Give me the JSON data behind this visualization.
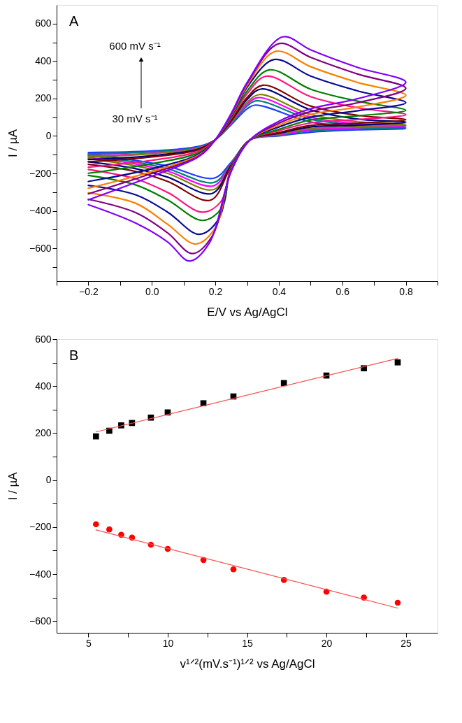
{
  "chart_data": [
    {
      "type": "line",
      "xlabel": "E/V vs Ag/AgCl",
      "ylabel": "I / µA",
      "xlim": [
        -0.3,
        0.9
      ],
      "ylim": [
        -775,
        700
      ],
      "grid": false,
      "marker": "none",
      "line_style": "solid",
      "xticks": [
        {
          "value": -0.3,
          "label": null
        },
        -0.2,
        {
          "value": -0.1,
          "label": null
        },
        {
          "value": 0,
          "label": "0.0"
        },
        {
          "value": 0.1,
          "label": null
        },
        0.2,
        {
          "value": 0.3,
          "label": null
        },
        0.4,
        {
          "value": 0.5,
          "label": null
        },
        0.6,
        {
          "value": 0.7,
          "label": null
        },
        0.8,
        {
          "value": 0.9,
          "label": null
        }
      ],
      "yticks": [
        {
          "value": -700,
          "label": null
        },
        -600,
        {
          "value": -500,
          "label": null
        },
        -400,
        {
          "value": -300,
          "label": null
        },
        -200,
        {
          "value": -100,
          "label": null
        },
        0,
        {
          "value": 100,
          "label": null
        },
        200,
        {
          "value": 300,
          "label": null
        },
        400,
        {
          "value": 500,
          "label": null
        },
        600
      ],
      "annotations": [
        "A",
        "600 mV s⁻¹",
        "30 mV s⁻¹"
      ],
      "series": [
        {
          "color": "#1e3cff",
          "x": [
            -0.2,
            0,
            0.15,
            0.2,
            0.25,
            0.3,
            0.326,
            0.5,
            0.65,
            0.8,
            0.65,
            0.5,
            0.4,
            0.31,
            0.25,
            0.196,
            0.05,
            -0.05,
            -0.2
          ],
          "values": [
            -88,
            -80,
            -55,
            -20,
            60,
            145,
            165,
            75,
            50,
            39,
            33,
            20,
            0,
            -20,
            -140,
            -225,
            -161,
            -131,
            -96
          ]
        },
        {
          "color": "#008080",
          "x": [
            -0.2,
            0,
            0.15,
            0.2,
            0.25,
            0.3,
            0.33,
            0.5,
            0.65,
            0.8,
            0.65,
            0.5,
            0.4,
            0.31,
            0.25,
            0.196,
            0.05,
            -0.05,
            -0.2
          ],
          "values": [
            -96,
            -85,
            -58,
            -20,
            65,
            160,
            188,
            90,
            58,
            47,
            38,
            28,
            3,
            -20,
            -145,
            -248,
            -175,
            -140,
            -104
          ]
        },
        {
          "color": "#ff00ff",
          "x": [
            -0.2,
            0,
            0.15,
            0.2,
            0.25,
            0.3,
            0.335,
            0.5,
            0.65,
            0.8,
            0.65,
            0.5,
            0.4,
            0.31,
            0.25,
            0.195,
            0.05,
            -0.05,
            -0.2
          ],
          "values": [
            -106,
            -92,
            -62,
            -20,
            70,
            170,
            205,
            100,
            65,
            55,
            44,
            34,
            6,
            -20,
            -148,
            -266,
            -188,
            -150,
            -114
          ]
        },
        {
          "color": "#808000",
          "x": [
            -0.2,
            0,
            0.15,
            0.2,
            0.25,
            0.3,
            0.34,
            0.5,
            0.65,
            0.8,
            0.65,
            0.5,
            0.4,
            0.31,
            0.25,
            0.195,
            0.05,
            -0.05,
            -0.2
          ],
          "values": [
            -112,
            -95,
            -64,
            -20,
            75,
            180,
            221,
            115,
            75,
            63,
            50,
            40,
            10,
            -20,
            -152,
            -286,
            -200,
            -160,
            -121
          ]
        },
        {
          "color": "#000080",
          "x": [
            -0.2,
            0,
            0.15,
            0.2,
            0.25,
            0.3,
            0.345,
            0.5,
            0.65,
            0.8,
            0.65,
            0.5,
            0.4,
            0.31,
            0.25,
            0.19,
            0.05,
            -0.05,
            -0.2
          ],
          "values": [
            -126,
            -105,
            -68,
            -20,
            80,
            195,
            251,
            140,
            90,
            74,
            58,
            48,
            14,
            -20,
            -155,
            -307,
            -220,
            -175,
            -138
          ]
        },
        {
          "color": "#800000",
          "x": [
            -0.2,
            0,
            0.15,
            0.2,
            0.25,
            0.3,
            0.35,
            0.5,
            0.65,
            0.8,
            0.65,
            0.5,
            0.4,
            0.31,
            0.25,
            0.185,
            0.05,
            -0.05,
            -0.2
          ],
          "values": [
            -138,
            -112,
            -72,
            -20,
            85,
            205,
            271,
            160,
            110,
            87,
            68,
            56,
            18,
            -20,
            -160,
            -343,
            -243,
            -190,
            -152
          ]
        },
        {
          "color": "#ff1480",
          "x": [
            -0.2,
            0,
            0.15,
            0.2,
            0.25,
            0.3,
            0.36,
            0.5,
            0.65,
            0.8,
            0.65,
            0.5,
            0.4,
            0.31,
            0.25,
            0.22,
            0.16,
            0.05,
            -0.05,
            -0.2
          ],
          "values": [
            -167,
            -130,
            -80,
            -20,
            95,
            225,
            319,
            210,
            150,
            114,
            88,
            70,
            28,
            -20,
            -165,
            -345,
            -407,
            -302,
            -230,
            -179
          ]
        },
        {
          "color": "#008000",
          "x": [
            -0.2,
            0,
            0.15,
            0.2,
            0.25,
            0.3,
            0.37,
            0.5,
            0.65,
            0.8,
            0.65,
            0.5,
            0.4,
            0.31,
            0.25,
            0.22,
            0.16,
            0.05,
            -0.05,
            -0.2
          ],
          "values": [
            -199,
            -148,
            -88,
            -20,
            100,
            240,
            353,
            250,
            185,
            137,
            108,
            85,
            35,
            -20,
            -170,
            -385,
            -451,
            -342,
            -262,
            -211
          ]
        },
        {
          "color": "#0a0a96",
          "x": [
            -0.2,
            0,
            0.15,
            0.2,
            0.25,
            0.3,
            0.385,
            0.5,
            0.65,
            0.8,
            0.65,
            0.5,
            0.4,
            0.31,
            0.25,
            0.21,
            0.149,
            0.05,
            -0.05,
            -0.2
          ],
          "values": [
            -243,
            -175,
            -95,
            -20,
            105,
            260,
            408,
            320,
            240,
            178,
            135,
            100,
            48,
            -20,
            -175,
            -445,
            -525,
            -407,
            -315,
            -264
          ]
        },
        {
          "color": "#ff8000",
          "x": [
            -0.2,
            0,
            0.15,
            0.2,
            0.25,
            0.3,
            0.39,
            0.5,
            0.65,
            0.8,
            0.65,
            0.5,
            0.4,
            0.31,
            0.25,
            0.2,
            0.138,
            0.05,
            -0.05,
            -0.2
          ],
          "values": [
            -279,
            -190,
            -100,
            -20,
            110,
            270,
            452,
            370,
            285,
            217,
            155,
            115,
            58,
            -20,
            -180,
            -490,
            -577,
            -472,
            -360,
            -303
          ]
        },
        {
          "color": "#800080",
          "x": [
            -0.2,
            0,
            0.15,
            0.2,
            0.25,
            0.3,
            0.4,
            0.5,
            0.65,
            0.8,
            0.65,
            0.5,
            0.4,
            0.31,
            0.25,
            0.19,
            0.128,
            0.05,
            -0.05,
            -0.2
          ],
          "values": [
            -309,
            -200,
            -105,
            -20,
            115,
            280,
            493,
            420,
            330,
            255,
            178,
            130,
            68,
            -20,
            -185,
            -535,
            -628,
            -518,
            -410,
            -338
          ]
        },
        {
          "color": "#8000ff",
          "x": [
            -0.2,
            0,
            0.15,
            0.2,
            0.25,
            0.3,
            0.412,
            0.5,
            0.65,
            0.8,
            0.65,
            0.5,
            0.4,
            0.31,
            0.25,
            0.18,
            0.119,
            0.05,
            -0.05,
            -0.2
          ],
          "values": [
            -341,
            -215,
            -108,
            -20,
            120,
            285,
            529,
            460,
            365,
            287,
            200,
            145,
            78,
            -20,
            -190,
            -575,
            -668,
            -566,
            -466,
            -367
          ]
        }
      ]
    },
    {
      "type": "scatter",
      "xlabel": "v¹ᐟ²(mV.s⁻¹)¹ᐟ² vs Ag/AgCl",
      "ylabel": "I / µA",
      "xlim": [
        3,
        27
      ],
      "ylim": [
        -650,
        600
      ],
      "grid": false,
      "xticks": [
        5,
        {
          "value": 7.5,
          "label": null
        },
        10,
        {
          "value": 12.5,
          "label": null
        },
        15,
        {
          "value": 17.5,
          "label": null
        },
        20,
        {
          "value": 22.5,
          "label": null
        },
        25
      ],
      "yticks": [
        -600,
        {
          "value": -500,
          "label": null
        },
        -400,
        {
          "value": -300,
          "label": null
        },
        -200,
        {
          "value": -100,
          "label": null
        },
        0,
        {
          "value": 100,
          "label": null
        },
        200,
        {
          "value": 300,
          "label": null
        },
        400,
        {
          "value": 500,
          "label": null
        },
        600
      ],
      "annotations": [
        "B"
      ],
      "series": [
        {
          "type": "scatter",
          "marker": "square",
          "color": "#000000",
          "x": [
            5.48,
            6.32,
            7.07,
            7.75,
            8.94,
            10,
            12.25,
            14.14,
            17.32,
            20,
            22.36,
            24.49
          ],
          "values": [
            186,
            210,
            233,
            243,
            266,
            288,
            327,
            356,
            413,
            445,
            476,
            501
          ]
        },
        {
          "type": "scatter",
          "marker": "circle",
          "color": "#ff0000",
          "x": [
            5.48,
            6.32,
            7.07,
            7.75,
            8.94,
            10,
            12.25,
            14.14,
            17.32,
            20,
            22.36,
            24.49
          ],
          "values": [
            -188,
            -210,
            -233,
            -245,
            -275,
            -293,
            -340,
            -380,
            -425,
            -475,
            -500,
            -522
          ]
        },
        {
          "type": "line",
          "marker": "none",
          "color": "#ff4d4d",
          "x": [
            5.48,
            24.49
          ],
          "values": [
            205,
            518
          ]
        },
        {
          "type": "line",
          "marker": "none",
          "color": "#ff4d4d",
          "x": [
            5.48,
            24.49
          ],
          "values": [
            -212,
            -545
          ]
        }
      ]
    }
  ]
}
